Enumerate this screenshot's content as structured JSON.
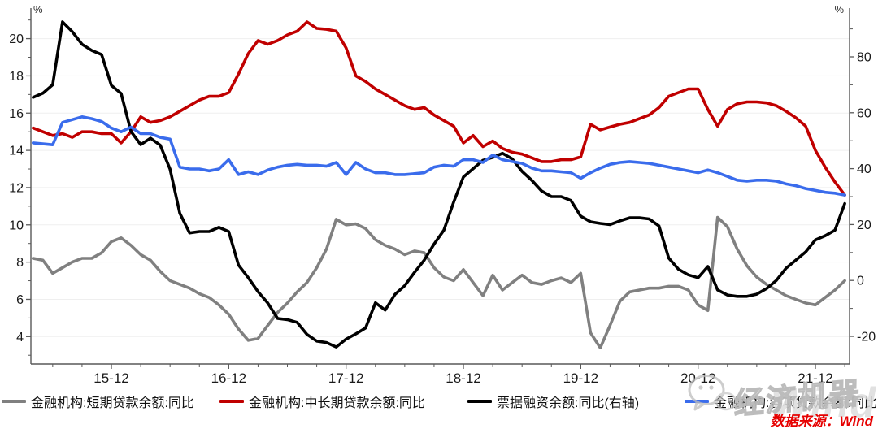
{
  "chart_data": {
    "type": "line",
    "title": "",
    "grid": true,
    "legend_position": "bottom",
    "left_axis": {
      "unit": "%",
      "ticks": [
        4,
        6,
        8,
        10,
        12,
        14,
        16,
        18,
        20
      ],
      "range": [
        2.5,
        21.6
      ]
    },
    "right_axis": {
      "unit": "%",
      "ticks": [
        -20,
        0,
        20,
        40,
        60,
        80
      ],
      "range": [
        -30,
        97.5
      ]
    },
    "x_tick_labels": [
      "15-12",
      "16-12",
      "17-12",
      "18-12",
      "19-12",
      "20-12",
      "21-12"
    ],
    "x": [
      "15-04",
      "15-05",
      "15-06",
      "15-07",
      "15-08",
      "15-09",
      "15-10",
      "15-11",
      "15-12",
      "16-01",
      "16-02",
      "16-03",
      "16-04",
      "16-05",
      "16-06",
      "16-07",
      "16-08",
      "16-09",
      "16-10",
      "16-11",
      "16-12",
      "17-01",
      "17-02",
      "17-03",
      "17-04",
      "17-05",
      "17-06",
      "17-07",
      "17-08",
      "17-09",
      "17-10",
      "17-11",
      "17-12",
      "18-01",
      "18-02",
      "18-03",
      "18-04",
      "18-05",
      "18-06",
      "18-07",
      "18-08",
      "18-09",
      "18-10",
      "18-11",
      "18-12",
      "19-01",
      "19-02",
      "19-03",
      "19-04",
      "19-05",
      "19-06",
      "19-07",
      "19-08",
      "19-09",
      "19-10",
      "19-11",
      "19-12",
      "20-01",
      "20-02",
      "20-03",
      "20-04",
      "20-05",
      "20-06",
      "20-07",
      "20-08",
      "20-09",
      "20-10",
      "20-11",
      "20-12",
      "21-01",
      "21-02",
      "21-03",
      "21-04",
      "21-05",
      "21-06",
      "21-07",
      "21-08",
      "21-09",
      "21-10",
      "21-11",
      "21-12",
      "22-01",
      "22-02",
      "22-03"
    ],
    "series": [
      {
        "name": "金融机构:短期贷款余额:同比",
        "color": "#808080",
        "axis": "left",
        "values": [
          8.2,
          8.1,
          7.4,
          7.7,
          8.0,
          8.2,
          8.2,
          8.5,
          9.1,
          9.3,
          8.9,
          8.4,
          8.1,
          7.5,
          7.0,
          6.8,
          6.6,
          6.3,
          6.1,
          5.7,
          5.2,
          4.4,
          3.8,
          3.9,
          4.6,
          5.3,
          5.8,
          6.4,
          6.9,
          7.7,
          8.7,
          10.3,
          10.0,
          10.05,
          9.8,
          9.2,
          8.9,
          8.7,
          8.4,
          8.6,
          8.5,
          7.7,
          7.2,
          7.0,
          7.6,
          6.9,
          6.2,
          7.3,
          6.5,
          6.9,
          7.3,
          6.9,
          6.8,
          7.0,
          7.15,
          6.9,
          7.4,
          4.2,
          3.4,
          4.6,
          5.9,
          6.4,
          6.5,
          6.6,
          6.6,
          6.7,
          6.7,
          6.5,
          5.7,
          5.4,
          10.4,
          9.9,
          8.7,
          7.8,
          7.2,
          6.8,
          6.5,
          6.2,
          6.0,
          5.8,
          5.7,
          6.1,
          6.5,
          7.0
        ]
      },
      {
        "name": "金融机构:中长期贷款余额:同比",
        "color": "#c00000",
        "axis": "left",
        "values": [
          15.2,
          15.0,
          14.8,
          14.9,
          14.7,
          15.0,
          15.0,
          14.9,
          14.9,
          14.4,
          15.0,
          15.8,
          15.5,
          15.6,
          15.8,
          16.1,
          16.4,
          16.7,
          16.9,
          16.9,
          17.1,
          18.1,
          19.2,
          19.9,
          19.7,
          19.9,
          20.2,
          20.4,
          20.9,
          20.55,
          20.5,
          20.4,
          19.5,
          18.0,
          17.7,
          17.3,
          17.0,
          16.7,
          16.4,
          16.2,
          16.3,
          15.9,
          15.6,
          15.3,
          14.4,
          14.8,
          14.2,
          14.5,
          14.1,
          13.9,
          13.8,
          13.6,
          13.4,
          13.4,
          13.5,
          13.5,
          13.65,
          15.4,
          15.1,
          15.25,
          15.4,
          15.5,
          15.7,
          15.9,
          16.3,
          16.9,
          17.1,
          17.3,
          17.3,
          16.2,
          15.3,
          16.2,
          16.5,
          16.6,
          16.6,
          16.55,
          16.4,
          16.1,
          15.75,
          15.3,
          14.0,
          13.1,
          12.3,
          11.6
        ]
      },
      {
        "name": "票据融资余额:同比(右轴)",
        "color": "#000000",
        "axis": "right",
        "values": [
          65.5,
          67,
          70,
          92.5,
          89,
          84.5,
          82.3,
          80.8,
          69.8,
          66.9,
          53.3,
          48.6,
          50.9,
          48.4,
          39.8,
          24,
          17,
          17.5,
          17.5,
          19,
          17.5,
          5.5,
          1,
          -4,
          -8.1,
          -13.6,
          -14,
          -15,
          -19.3,
          -21.7,
          -22.2,
          -23.8,
          -21,
          -19.1,
          -17,
          -8,
          -10.6,
          -5,
          -1.9,
          2.9,
          7.3,
          13,
          18,
          28,
          37,
          40,
          43,
          44,
          45.5,
          43.5,
          39,
          35.8,
          32,
          30,
          30,
          28.6,
          23,
          21,
          20.4,
          20,
          21.3,
          22.4,
          22.4,
          22,
          19.5,
          8,
          4,
          2,
          1,
          5,
          -3.4,
          -5.2,
          -5.7,
          -5.7,
          -4.9,
          -2.9,
          0,
          4.4,
          7.3,
          10.2,
          14.5,
          16,
          18,
          27.5
        ]
      },
      {
        "name": "金融机构:各项贷款余额:同比",
        "color": "#3a6cec",
        "axis": "left",
        "values": [
          14.4,
          14.35,
          14.3,
          15.5,
          15.65,
          15.8,
          15.7,
          15.55,
          15.2,
          15.0,
          15.25,
          14.9,
          14.9,
          14.7,
          14.6,
          13.1,
          13.0,
          13.0,
          12.9,
          13.0,
          13.5,
          12.7,
          12.85,
          12.7,
          12.95,
          13.1,
          13.2,
          13.25,
          13.2,
          13.2,
          13.15,
          13.35,
          12.7,
          13.35,
          13.0,
          12.8,
          12.8,
          12.7,
          12.7,
          12.75,
          12.8,
          13.1,
          13.2,
          13.15,
          13.5,
          13.5,
          13.35,
          13.75,
          13.5,
          13.4,
          13.3,
          13.05,
          12.9,
          12.9,
          12.85,
          12.8,
          12.5,
          12.8,
          13.05,
          13.25,
          13.35,
          13.4,
          13.35,
          13.3,
          13.2,
          13.1,
          13.0,
          12.9,
          12.8,
          12.95,
          12.8,
          12.6,
          12.4,
          12.35,
          12.4,
          12.4,
          12.35,
          12.2,
          12.1,
          11.95,
          11.85,
          11.75,
          11.7,
          11.6
        ]
      }
    ]
  },
  "source_note": "数据来源：Wind",
  "watermark": {
    "brand_text": "经济机器",
    "background_text": "Wind",
    "icon": "wechat-icon"
  }
}
